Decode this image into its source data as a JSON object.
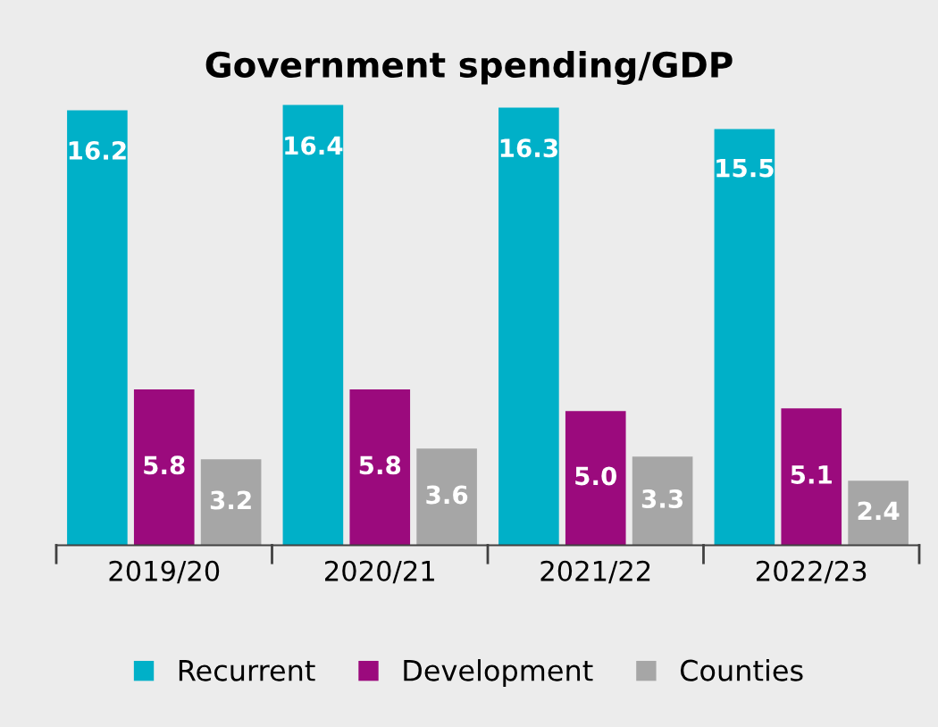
{
  "chart_data": {
    "type": "bar",
    "title": "Government spending/GDP",
    "categories": [
      "2019/20",
      "2020/21",
      "2021/22",
      "2022/23"
    ],
    "series": [
      {
        "name": "Recurrent",
        "color": "#00b0c8",
        "values": [
          16.2,
          16.4,
          16.3,
          15.5
        ],
        "value_labels": [
          "16.2",
          "16.4",
          "16.3",
          "15.5"
        ]
      },
      {
        "name": "Development",
        "color": "#9b0a7d",
        "values": [
          5.8,
          5.8,
          5.0,
          5.1
        ],
        "value_labels": [
          "5.8",
          "5.8",
          "5.0",
          "5.1"
        ]
      },
      {
        "name": "Counties",
        "color": "#a6a6a6",
        "values": [
          3.2,
          3.6,
          3.3,
          2.4
        ],
        "value_labels": [
          "3.2",
          "3.6",
          "3.3",
          "2.4"
        ]
      }
    ],
    "legend": "bottom",
    "grid": false
  }
}
